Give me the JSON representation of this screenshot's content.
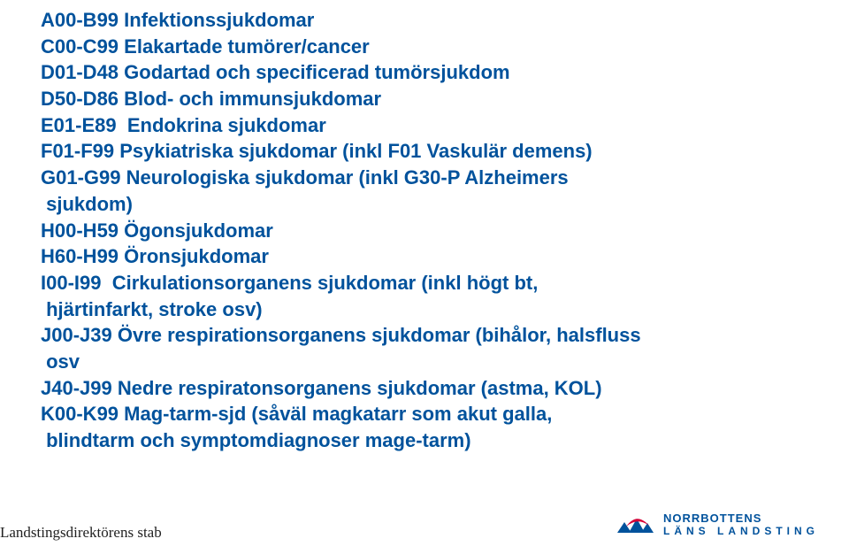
{
  "lines": [
    "A00-B99 Infektionssjukdomar",
    "C00-C99 Elakartade tumörer/cancer",
    "D01-D48 Godartad och specificerad tumörsjukdom",
    "D50-D86 Blod- och immunsjukdomar",
    "E01-E89  Endokrina sjukdomar",
    "F01-F99 Psykiatriska sjukdomar (inkl F01 Vaskulär demens)",
    "G01-G99 Neurologiska sjukdomar (inkl G30-P Alzheimers",
    " sjukdom)",
    "H00-H59 Ögonsjukdomar",
    "H60-H99 Öronsjukdomar",
    "I00-I99  Cirkulationsorganens sjukdomar (inkl högt bt,",
    " hjärtinfarkt, stroke osv)",
    "J00-J39 Övre respirationsorganens sjukdomar (bihålor, halsfluss",
    " osv",
    "J40-J99 Nedre respiratonsorganens sjukdomar (astma, KOL)",
    "K00-K99 Mag-tarm-sjd (såväl magkatarr som akut galla,",
    " blindtarm och symptomdiagnoser mage-tarm)"
  ],
  "footer": "Landstingsdirektörens stab",
  "logo": {
    "line1": "NORRBOTTENS",
    "line2": "LÄNS LANDSTING",
    "mark_color": "#00529c",
    "accent_color": "#d60036"
  },
  "style": {
    "text_color": "#00529c",
    "font_size_pt": 17,
    "background": "#ffffff"
  }
}
